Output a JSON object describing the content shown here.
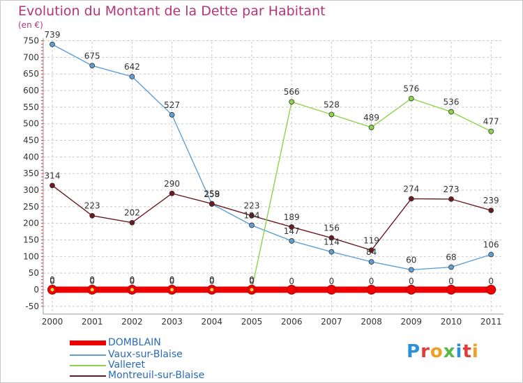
{
  "title": "Evolution du Montant de la Dette par Habitant",
  "unit_label": "(en €)",
  "logo_text": "Proxiti",
  "colors": {
    "title": "#b2357a",
    "grid": "#bdbdbd",
    "axis_text": "#333333"
  },
  "chart_data": {
    "type": "line",
    "x": [
      "2000",
      "2001",
      "2002",
      "2003",
      "2004",
      "2005",
      "2006",
      "2007",
      "2008",
      "2009",
      "2010",
      "2011"
    ],
    "ylim": [
      -50,
      750
    ],
    "yticks": [
      -50,
      0,
      50,
      100,
      150,
      200,
      250,
      300,
      350,
      400,
      450,
      500,
      550,
      600,
      650,
      700,
      750
    ],
    "grid": true,
    "legend_position": "bottom-left",
    "series": [
      {
        "name": "DOMBLAIN",
        "color": "#ee0000",
        "values": [
          0,
          0,
          0,
          0,
          0,
          0,
          0,
          0,
          0,
          0,
          0,
          0
        ]
      },
      {
        "name": "Vaux-sur-Blaise",
        "color": "#5e9fd6",
        "values": [
          739,
          675,
          642,
          527,
          258,
          194,
          147,
          114,
          84,
          60,
          68,
          106
        ]
      },
      {
        "name": "Valleret",
        "color": "#8ed34a",
        "values": [
          0,
          0,
          0,
          0,
          0,
          0,
          566,
          528,
          489,
          576,
          536,
          477
        ]
      },
      {
        "name": "Montreuil-sur-Blaise",
        "color": "#6b1a22",
        "values": [
          314,
          223,
          202,
          290,
          259,
          223,
          189,
          156,
          119,
          274,
          273,
          239
        ]
      }
    ]
  }
}
